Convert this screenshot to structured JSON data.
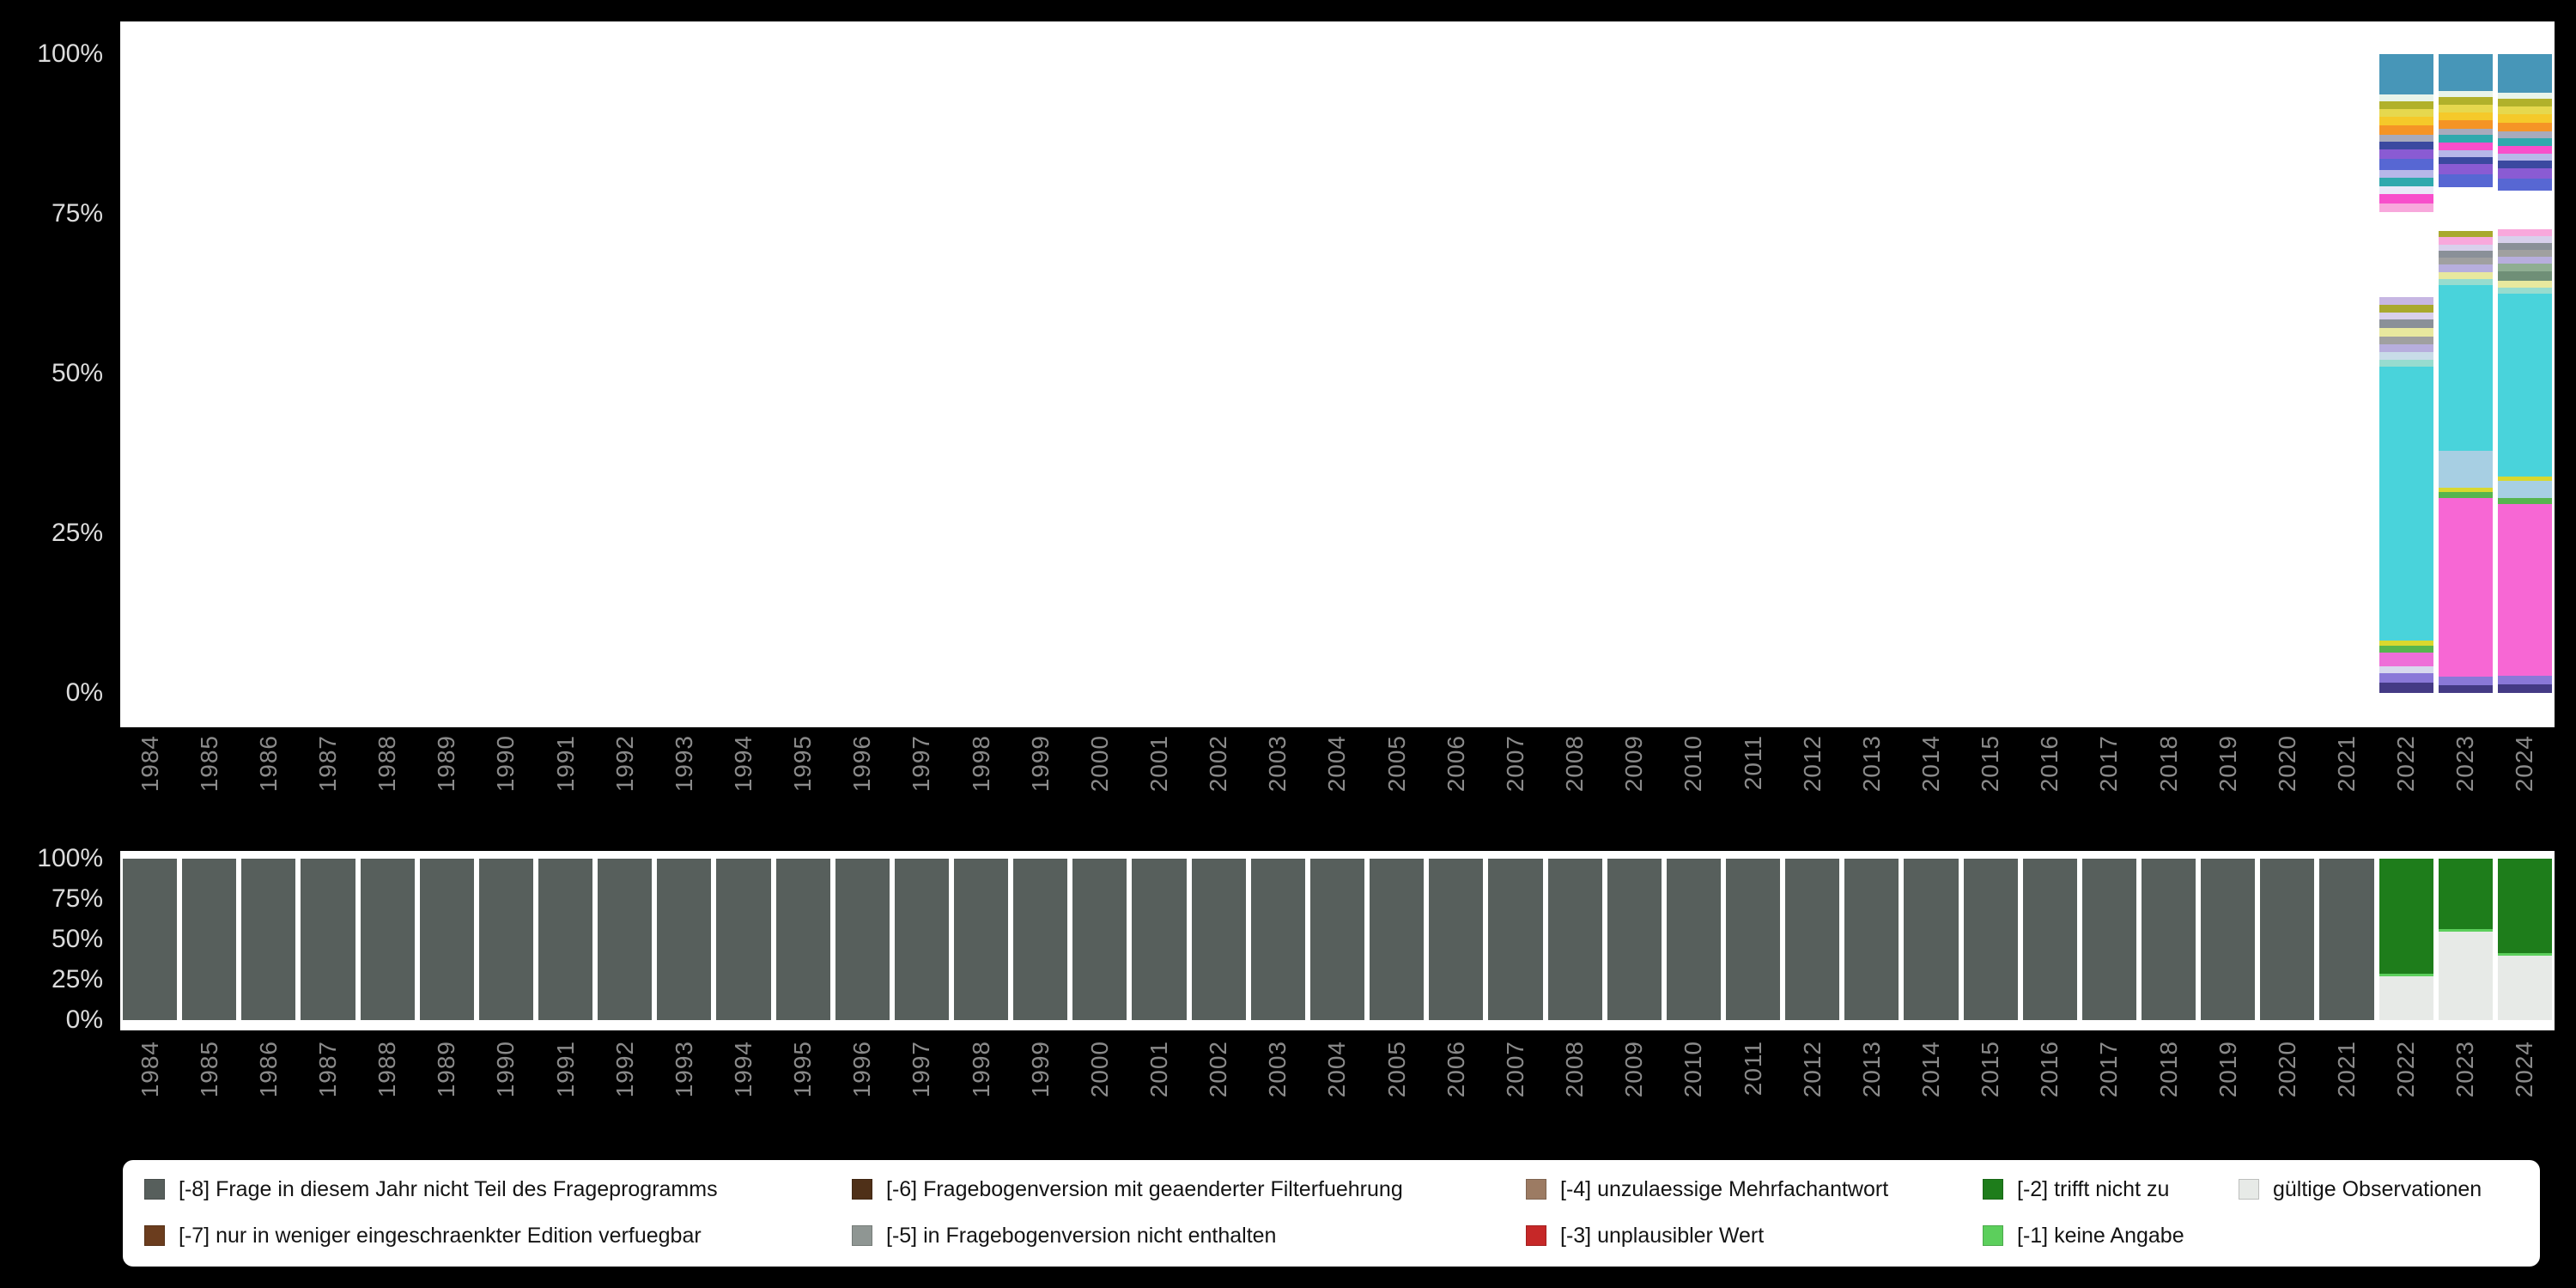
{
  "page": {
    "background": "#000000",
    "plot_background": "#ffffff",
    "tick_color": "#dcdcdc",
    "year_label_color": "#8a8a8a"
  },
  "axes": {
    "ytick_labels": [
      "100%",
      "75%",
      "50%",
      "25%",
      "0%"
    ]
  },
  "chart_data": [
    {
      "id": "answer-category-distribution",
      "type": "bar",
      "stacked": true,
      "orientation": "vertical",
      "unit": "percent",
      "ylim": [
        0,
        100
      ],
      "grid": false,
      "legend_position": "none",
      "ytick_labels": [
        "100%",
        "75%",
        "50%",
        "25%",
        "0%"
      ],
      "categories": [
        "1984",
        "1985",
        "1986",
        "1987",
        "1988",
        "1989",
        "1990",
        "1991",
        "1992",
        "1993",
        "1994",
        "1995",
        "1996",
        "1997",
        "1998",
        "1999",
        "2000",
        "2001",
        "2002",
        "2003",
        "2004",
        "2005",
        "2006",
        "2007",
        "2008",
        "2009",
        "2010",
        "2011",
        "2012",
        "2013",
        "2014",
        "2015",
        "2016",
        "2017",
        "2018",
        "2019",
        "2020",
        "2021",
        "2022",
        "2023",
        "2024"
      ],
      "bars": {
        "2022": [
          [
            "#443a85",
            1.5
          ],
          [
            "#8a78d8",
            1.5
          ],
          [
            "#d8d8ee",
            1.0
          ],
          [
            "#ee6ed8",
            2.0
          ],
          [
            "#56b54e",
            1.0
          ],
          [
            "#d8d82e",
            0.8
          ],
          [
            "#49d3db",
            41.0
          ],
          [
            "#97dccf",
            1.0
          ],
          [
            "#c8dce8",
            1.1
          ],
          [
            "#b7aedd",
            1.2
          ],
          [
            "#a0a0a0",
            1.2
          ],
          [
            "#e8e89e",
            1.2
          ],
          [
            "#8a9098",
            1.3
          ],
          [
            "#d8d0ec",
            1.1
          ],
          [
            "#a9a92e",
            1.1
          ],
          [
            "#c7b7e3",
            1.2
          ],
          [
            "#ffffff",
            12.7
          ],
          [
            "#f8a8dc",
            1.3
          ],
          [
            "#f84ecb",
            1.4
          ],
          [
            "#e8e8f8",
            1.1
          ],
          [
            "#2fa9ad",
            1.3
          ],
          [
            "#b7b7e9",
            1.2
          ],
          [
            "#5767d3",
            1.6
          ],
          [
            "#8a5bd3",
            1.4
          ],
          [
            "#3b49a0",
            1.2
          ],
          [
            "#a8aabc",
            1.1
          ],
          [
            "#f59426",
            1.3
          ],
          [
            "#f5c92a",
            1.3
          ],
          [
            "#e6d84e",
            1.2
          ],
          [
            "#b1b12b",
            1.2
          ],
          [
            "#e8f4ea",
            1.0
          ],
          [
            "#4796b8",
            6.0
          ]
        ],
        "2023": [
          [
            "#443a85",
            1.2
          ],
          [
            "#8a78d8",
            1.2
          ],
          [
            "#f767d4",
            26.5
          ],
          [
            "#56b54e",
            0.9
          ],
          [
            "#d8d82e",
            0.6
          ],
          [
            "#a7cfe3",
            5.5
          ],
          [
            "#49d3db",
            24.5
          ],
          [
            "#97dccf",
            0.9
          ],
          [
            "#e8e89e",
            1.0
          ],
          [
            "#b7aedd",
            1.1
          ],
          [
            "#a0a0a0",
            1.1
          ],
          [
            "#8a9098",
            1.0
          ],
          [
            "#d8d0ec",
            0.9
          ],
          [
            "#f8a8dc",
            1.1
          ],
          [
            "#a9a92e",
            0.9
          ],
          [
            "#ffffff",
            6.5
          ],
          [
            "#5767d3",
            1.9
          ],
          [
            "#8a5bd3",
            1.5
          ],
          [
            "#3b49a0",
            1.1
          ],
          [
            "#b7b7e9",
            1.0
          ],
          [
            "#f84ecb",
            1.1
          ],
          [
            "#2fa9ad",
            1.1
          ],
          [
            "#a8aabc",
            1.0
          ],
          [
            "#f59426",
            1.2
          ],
          [
            "#f5c92a",
            1.2
          ],
          [
            "#e6d84e",
            1.1
          ],
          [
            "#b1b12b",
            1.1
          ],
          [
            "#e8f4ea",
            0.9
          ],
          [
            "#4796b8",
            5.5
          ]
        ],
        "2024": [
          [
            "#443a85",
            1.2
          ],
          [
            "#8a78d8",
            1.2
          ],
          [
            "#f767d4",
            24.5
          ],
          [
            "#56b54e",
            0.9
          ],
          [
            "#a7cfe3",
            2.5
          ],
          [
            "#d8d82e",
            0.6
          ],
          [
            "#49d3db",
            26.0
          ],
          [
            "#97dccf",
            0.9
          ],
          [
            "#e8e89e",
            1.0
          ],
          [
            "#6f8f77",
            1.3
          ],
          [
            "#8fae92",
            1.1
          ],
          [
            "#b7aedd",
            1.0
          ],
          [
            "#a0a0a0",
            1.0
          ],
          [
            "#8a9098",
            1.0
          ],
          [
            "#d8d0ec",
            0.9
          ],
          [
            "#f8a8dc",
            1.0
          ],
          [
            "#ffffff",
            5.5
          ],
          [
            "#5767d3",
            1.7
          ],
          [
            "#8a5bd3",
            1.5
          ],
          [
            "#3b49a0",
            1.1
          ],
          [
            "#b7b7e9",
            1.0
          ],
          [
            "#f84ecb",
            1.1
          ],
          [
            "#2fa9ad",
            1.1
          ],
          [
            "#a8aabc",
            1.0
          ],
          [
            "#f59426",
            1.2
          ],
          [
            "#f5c92a",
            1.2
          ],
          [
            "#e6d84e",
            1.1
          ],
          [
            "#b1b12b",
            1.1
          ],
          [
            "#e8f4ea",
            0.9
          ],
          [
            "#4796b8",
            5.5
          ]
        ]
      }
    },
    {
      "id": "missing-codes-vs-valid",
      "type": "bar",
      "stacked": true,
      "orientation": "vertical",
      "unit": "percent",
      "ylim": [
        0,
        100
      ],
      "grid": false,
      "legend_position": "bottom",
      "ytick_labels": [
        "100%",
        "75%",
        "50%",
        "25%",
        "0%"
      ],
      "categories": [
        "1984",
        "1985",
        "1986",
        "1987",
        "1988",
        "1989",
        "1990",
        "1991",
        "1992",
        "1993",
        "1994",
        "1995",
        "1996",
        "1997",
        "1998",
        "1999",
        "2000",
        "2001",
        "2002",
        "2003",
        "2004",
        "2005",
        "2006",
        "2007",
        "2008",
        "2009",
        "2010",
        "2011",
        "2012",
        "2013",
        "2014",
        "2015",
        "2016",
        "2017",
        "2018",
        "2019",
        "2020",
        "2021",
        "2022",
        "2023",
        "2024"
      ],
      "default_bar": [
        [
          "#575f5c",
          100,
          "[-8] Frage in diesem Jahr nicht Teil des Frageprogramms"
        ]
      ],
      "bars": {
        "2022": [
          [
            "#e7eae7",
            27,
            "gültige Observationen"
          ],
          [
            "#5ccf5c",
            1.5,
            "[-1] keine Angabe"
          ],
          [
            "#1e7d1b",
            71.5,
            "[-2] trifft nicht zu"
          ]
        ],
        "2023": [
          [
            "#e7eae7",
            55,
            "gültige Observationen"
          ],
          [
            "#5ccf5c",
            1.5,
            "[-1] keine Angabe"
          ],
          [
            "#1e7d1b",
            43.5,
            "[-2] trifft nicht zu"
          ]
        ],
        "2024": [
          [
            "#e7eae7",
            40,
            "gültige Observationen"
          ],
          [
            "#5ccf5c",
            1.5,
            "[-1] keine Angabe"
          ],
          [
            "#1e7d1b",
            58.5,
            "[-2] trifft nicht zu"
          ]
        ]
      }
    }
  ],
  "legend": {
    "background": "#ffffff",
    "items": [
      {
        "label": "[-8] Frage in diesem Jahr nicht Teil des Frageprogramms",
        "color": "#575f5c",
        "col": 0,
        "row": 0
      },
      {
        "label": "[-7] nur in weniger eingeschraenkter Edition verfuegbar",
        "color": "#6b3d1e",
        "col": 0,
        "row": 1
      },
      {
        "label": "[-6] Fragebogenversion mit geaenderter Filterfuehrung",
        "color": "#4f3018",
        "col": 1,
        "row": 0
      },
      {
        "label": "[-5] in Fragebogenversion nicht enthalten",
        "color": "#8f9693",
        "col": 1,
        "row": 1
      },
      {
        "label": "[-4] unzulaessige Mehrfachantwort",
        "color": "#9c7b63",
        "col": 2,
        "row": 0
      },
      {
        "label": "[-3] unplausibler Wert",
        "color": "#c62828",
        "col": 2,
        "row": 1
      },
      {
        "label": "[-2] trifft nicht zu",
        "color": "#1e7d1b",
        "col": 3,
        "row": 0
      },
      {
        "label": "[-1] keine Angabe",
        "color": "#5ccf5c",
        "col": 3,
        "row": 1
      },
      {
        "label": "gültige Observationen",
        "color": "#e7eae7",
        "col": 4,
        "row": 0
      }
    ]
  }
}
